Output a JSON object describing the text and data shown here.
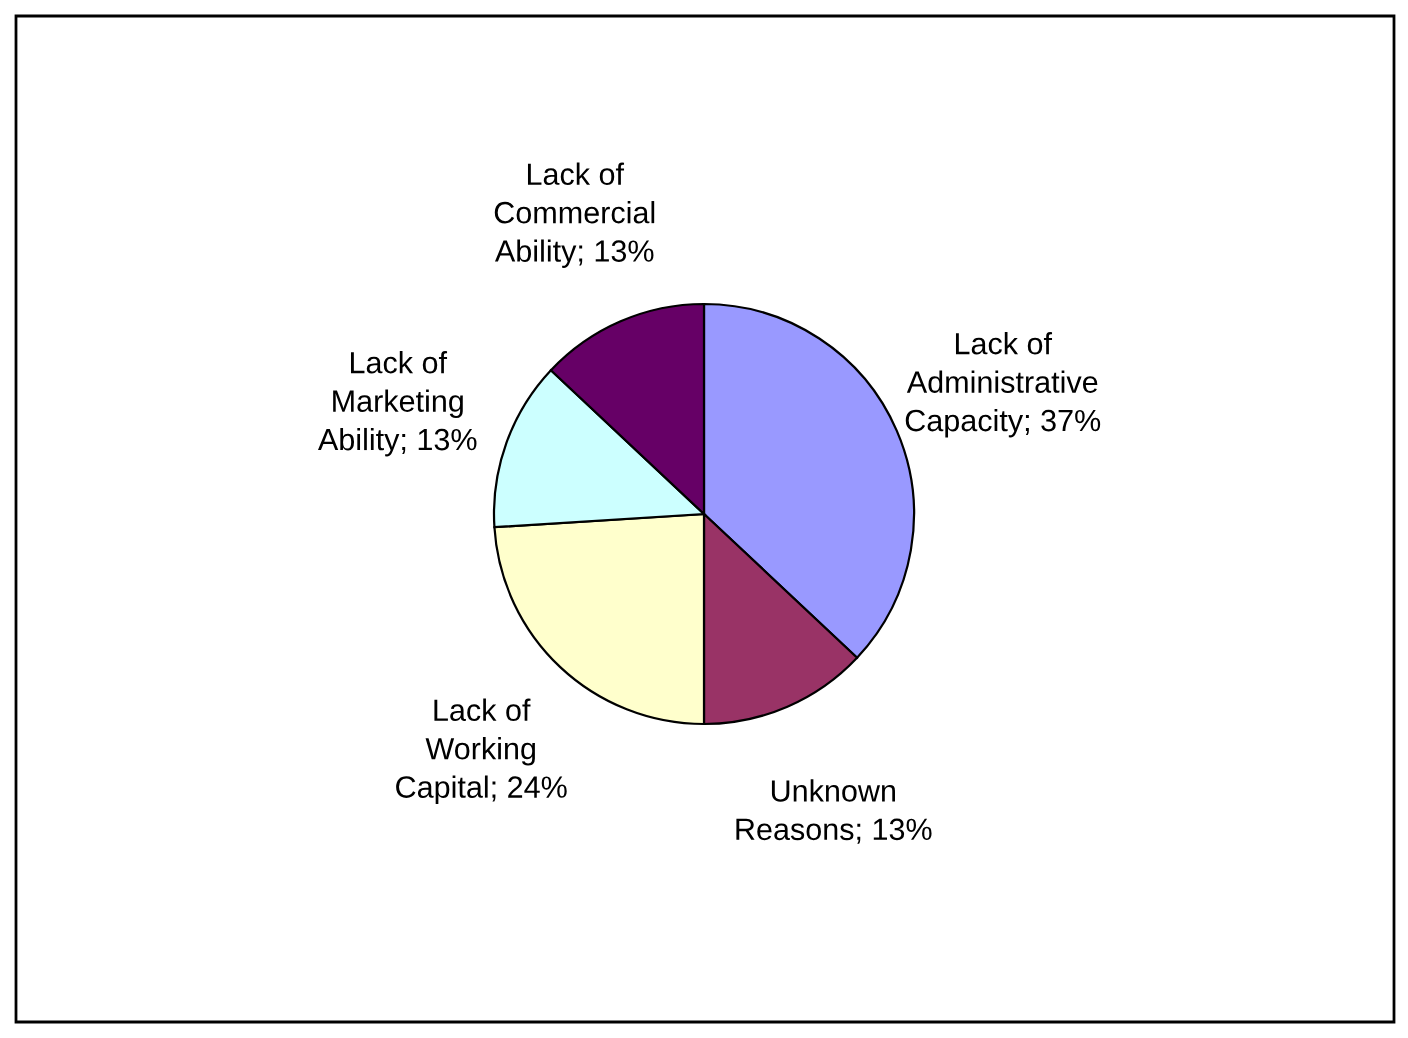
{
  "chart_data": {
    "type": "pie",
    "categories": [
      "Lack of\nAdministrative\nCapacity",
      "Unknown\nReasons",
      "Lack of\nWorking\nCapital",
      "Lack of\nMarketing\nAbility",
      "Lack of\nCommercial\nAbility"
    ],
    "values": [
      37,
      13,
      24,
      13,
      13
    ],
    "value_labels": [
      "37%",
      "13%",
      "24%",
      "13%",
      "13%"
    ],
    "colors": [
      "#9999ff",
      "#993366",
      "#ffffcc",
      "#ccffff",
      "#660066"
    ],
    "legend": false
  }
}
